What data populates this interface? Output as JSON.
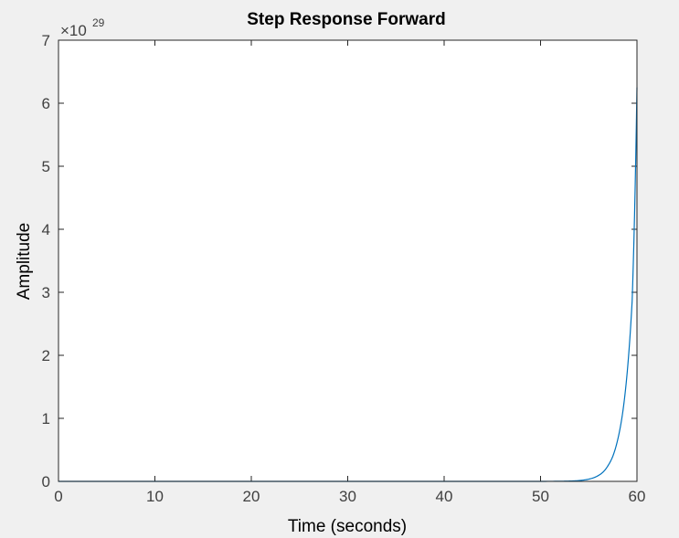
{
  "chart_data": {
    "type": "line",
    "title": "Step Response Forward",
    "xlabel": "Time (seconds)",
    "ylabel": "Amplitude",
    "xlim": [
      0,
      60
    ],
    "ylim": [
      0,
      7
    ],
    "y_exponent_label": "×10",
    "y_exponent": "29",
    "y_scale_factor": 1e+29,
    "xticks": [
      "0",
      "10",
      "20",
      "30",
      "40",
      "50",
      "60"
    ],
    "yticks": [
      "0",
      "1",
      "2",
      "3",
      "4",
      "5",
      "6",
      "7"
    ],
    "grid": false,
    "line_color": "#0072bd",
    "series": [
      {
        "x": [
          0,
          10,
          20,
          30,
          40,
          50,
          52,
          53,
          54,
          55,
          55.5,
          56,
          56.5,
          57,
          57.5,
          58,
          58.5,
          59,
          59.5,
          60
        ],
        "y": [
          0,
          0,
          0,
          0,
          0,
          0.0003,
          0.002,
          0.005,
          0.013,
          0.035,
          0.057,
          0.093,
          0.15,
          0.25,
          0.4,
          0.66,
          1.07,
          1.75,
          2.86,
          6.25
        ]
      }
    ]
  }
}
